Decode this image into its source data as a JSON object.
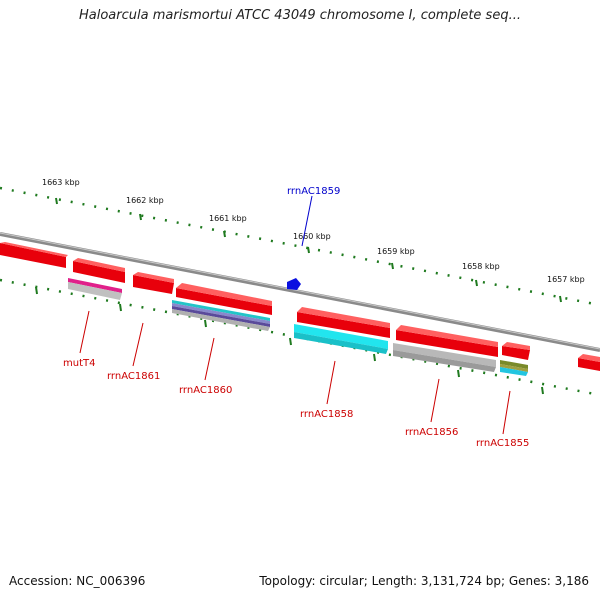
{
  "title": "Haloarcula marismortui ATCC 43049 chromosome I, complete seq...",
  "footer": {
    "accession": "Accession: NC_006396",
    "summary": "Topology: circular; Length: 3,131,724 bp; Genes: 3,186"
  },
  "scale_labels": [
    "1663 kbp",
    "1662 kbp",
    "1661 kbp",
    "1660 kbp",
    "1659 kbp",
    "1658 kbp",
    "1657 kbp"
  ],
  "gene_labels": {
    "rrnAC1859": "rrnAC1859",
    "mutT4": "mutT4",
    "rrnAC1861": "rrnAC1861",
    "rrnAC1860": "rrnAC1860",
    "rrnAC1858": "rrnAC1858",
    "rrnAC1856": "rrnAC1856",
    "rrnAC1855": "rrnAC1855"
  },
  "colors": {
    "gene_red": "#e8000b",
    "backbone": "#8a8a8a",
    "tick_green": "#1f7a1f",
    "label_red": "#cc0000",
    "label_blue": "#0000cc",
    "marker_blue": "#0a10e0",
    "cyan": "#22e5ee",
    "magenta": "#e0208a",
    "gray_feature": "#b8b8b8",
    "purple_feature": "#5a4a9a",
    "olive_feature": "#7a8a2a"
  }
}
